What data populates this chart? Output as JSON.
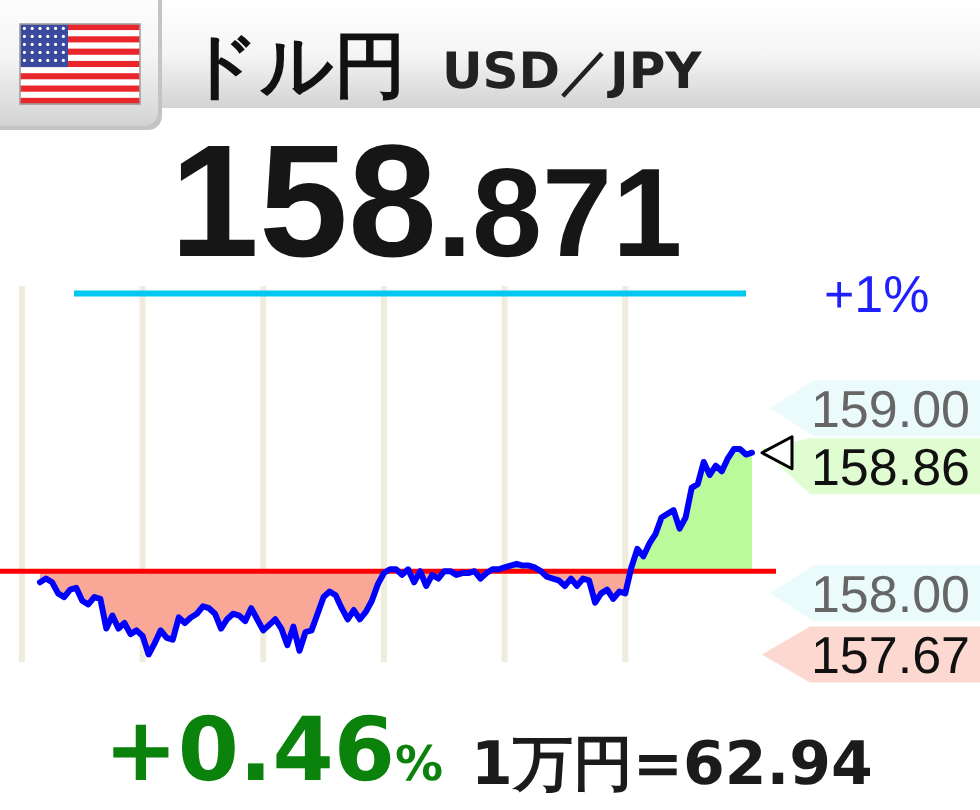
{
  "chart_data": {
    "type": "line",
    "title": "ドル円",
    "subtitle": "USD／JPY",
    "categories": [
      null,
      null,
      null,
      null,
      null,
      null,
      null,
      null,
      null,
      null,
      null,
      null,
      null,
      null,
      null,
      null,
      null,
      null,
      null,
      null,
      null,
      null,
      null,
      null,
      null,
      null,
      null,
      null,
      null,
      null,
      null,
      null,
      null,
      null,
      null,
      null,
      null,
      null,
      null,
      null,
      null,
      null,
      null,
      null,
      null,
      null,
      null,
      null,
      null,
      null,
      null,
      null,
      null,
      null,
      null,
      null,
      null,
      null,
      null,
      null,
      null,
      null,
      null,
      null,
      null,
      null,
      null,
      null,
      null,
      null,
      null,
      null,
      null,
      null,
      null,
      null,
      null,
      null,
      null,
      null,
      null,
      null,
      null,
      null,
      null,
      null,
      null,
      null,
      null,
      null,
      null,
      null,
      null,
      null,
      null,
      null,
      null,
      null,
      null,
      null,
      null,
      null,
      null,
      null,
      null,
      null,
      null,
      null,
      null,
      null,
      null,
      null,
      null,
      null,
      null,
      null,
      null,
      null,
      null
    ],
    "series": [
      {
        "color": "#0000ff",
        "values": [
          158.06,
          158.08,
          158.06,
          158.0,
          157.98,
          158.02,
          158.03,
          157.96,
          157.94,
          157.98,
          157.97,
          157.81,
          157.88,
          157.81,
          157.84,
          157.78,
          157.8,
          157.77,
          157.67,
          157.73,
          157.8,
          157.76,
          157.75,
          157.87,
          157.84,
          157.87,
          157.89,
          157.93,
          157.92,
          157.89,
          157.81,
          157.86,
          157.89,
          157.88,
          157.85,
          157.92,
          157.86,
          157.8,
          157.83,
          157.86,
          157.81,
          157.72,
          157.82,
          157.69,
          157.79,
          157.8,
          157.89,
          157.98,
          158.01,
          157.99,
          157.92,
          157.86,
          157.91,
          157.86,
          157.9,
          157.96,
          158.05,
          158.11,
          158.13,
          158.13,
          158.1,
          158.13,
          158.06,
          158.12,
          158.04,
          158.1,
          158.08,
          158.12,
          158.12,
          158.1,
          158.11,
          158.11,
          158.12,
          158.08,
          158.11,
          158.13,
          158.13,
          158.14,
          158.15,
          158.16,
          158.15,
          158.15,
          158.14,
          158.12,
          158.09,
          158.08,
          158.07,
          158.04,
          158.08,
          158.04,
          158.08,
          158.07,
          157.95,
          158.0,
          158.02,
          157.97,
          158.01,
          158.0,
          158.14,
          158.24,
          158.2,
          158.27,
          158.32,
          158.41,
          158.43,
          158.45,
          158.35,
          158.41,
          158.57,
          158.59,
          158.71,
          158.64,
          158.69,
          158.66,
          158.73,
          158.78,
          158.78,
          158.75,
          158.76
        ]
      }
    ],
    "ylim": [
      157.64,
      159.65
    ],
    "yticks": [
      {
        "value": 158,
        "label": "158.00"
      },
      {
        "value": 159,
        "label": "159.00"
      }
    ],
    "grid": "x",
    "tick_labels": "y",
    "ref_lines": [
      {
        "axis": "y",
        "value": 158.12,
        "color": "#ff0000"
      },
      {
        "axis": "y",
        "value": 159.62,
        "color": "#00c8f0"
      }
    ],
    "annotations": [
      "158.871",
      "+1%",
      "158.86",
      "157.67",
      "+0.46%",
      "1万円=62.94"
    ]
  }
}
